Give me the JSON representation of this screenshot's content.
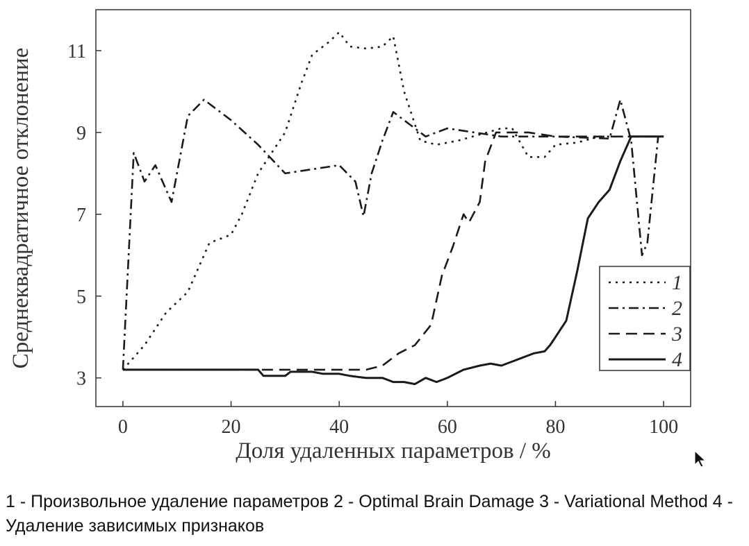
{
  "chart_data": {
    "type": "line",
    "xlabel": "Доля удаленных параметров / %",
    "ylabel": "Среднеквадратичное отклонение",
    "xlim": [
      -5,
      105
    ],
    "ylim": [
      2.3,
      12
    ],
    "x_ticks": [
      0,
      20,
      40,
      60,
      80,
      100
    ],
    "y_ticks": [
      3,
      5,
      7,
      9,
      11
    ],
    "legend_position": "bottom-right",
    "series": [
      {
        "name": "1",
        "style": "dotted",
        "points": [
          [
            0,
            3.2
          ],
          [
            4,
            3.8
          ],
          [
            8,
            4.6
          ],
          [
            12,
            5.1
          ],
          [
            16,
            6.3
          ],
          [
            20,
            6.5
          ],
          [
            22,
            7.0
          ],
          [
            25,
            8.0
          ],
          [
            30,
            9.0
          ],
          [
            33,
            10.2
          ],
          [
            35,
            10.9
          ],
          [
            38,
            11.2
          ],
          [
            40,
            11.45
          ],
          [
            42,
            11.1
          ],
          [
            45,
            11.05
          ],
          [
            48,
            11.1
          ],
          [
            50,
            11.35
          ],
          [
            52,
            10.0
          ],
          [
            55,
            8.8
          ],
          [
            58,
            8.7
          ],
          [
            62,
            8.8
          ],
          [
            66,
            8.95
          ],
          [
            70,
            9.1
          ],
          [
            72,
            9.1
          ],
          [
            75,
            8.4
          ],
          [
            78,
            8.4
          ],
          [
            80,
            8.7
          ],
          [
            84,
            8.75
          ],
          [
            88,
            8.9
          ],
          [
            92,
            8.9
          ],
          [
            100,
            8.9
          ]
        ]
      },
      {
        "name": "2",
        "style": "dashdot",
        "points": [
          [
            0,
            3.2
          ],
          [
            2,
            8.5
          ],
          [
            4,
            7.8
          ],
          [
            6,
            8.2
          ],
          [
            9,
            7.3
          ],
          [
            12,
            9.4
          ],
          [
            15,
            9.8
          ],
          [
            20,
            9.3
          ],
          [
            25,
            8.7
          ],
          [
            30,
            8.0
          ],
          [
            35,
            8.1
          ],
          [
            40,
            8.2
          ],
          [
            43,
            7.8
          ],
          [
            44.5,
            6.95
          ],
          [
            46,
            8.0
          ],
          [
            48,
            8.8
          ],
          [
            50,
            9.5
          ],
          [
            53,
            9.2
          ],
          [
            56,
            8.9
          ],
          [
            60,
            9.1
          ],
          [
            70,
            8.9
          ],
          [
            80,
            8.9
          ],
          [
            90,
            8.85
          ],
          [
            92,
            9.8
          ],
          [
            94,
            8.8
          ],
          [
            96,
            6.0
          ],
          [
            97,
            6.3
          ],
          [
            99,
            8.9
          ],
          [
            100,
            8.9
          ]
        ]
      },
      {
        "name": "3",
        "style": "dashed",
        "points": [
          [
            0,
            3.2
          ],
          [
            20,
            3.2
          ],
          [
            30,
            3.2
          ],
          [
            40,
            3.2
          ],
          [
            45,
            3.2
          ],
          [
            48,
            3.3
          ],
          [
            51,
            3.6
          ],
          [
            54,
            3.8
          ],
          [
            57,
            4.3
          ],
          [
            59,
            5.5
          ],
          [
            61,
            6.2
          ],
          [
            63,
            7.0
          ],
          [
            64,
            6.8
          ],
          [
            66,
            7.3
          ],
          [
            67,
            8.3
          ],
          [
            69,
            9.0
          ],
          [
            75,
            9.0
          ],
          [
            80,
            8.9
          ],
          [
            90,
            8.9
          ],
          [
            100,
            8.9
          ]
        ]
      },
      {
        "name": "4",
        "style": "solid",
        "points": [
          [
            0,
            3.2
          ],
          [
            10,
            3.2
          ],
          [
            20,
            3.2
          ],
          [
            25,
            3.2
          ],
          [
            26,
            3.05
          ],
          [
            30,
            3.05
          ],
          [
            31,
            3.15
          ],
          [
            35,
            3.15
          ],
          [
            37,
            3.1
          ],
          [
            40,
            3.1
          ],
          [
            42,
            3.05
          ],
          [
            45,
            3.0
          ],
          [
            48,
            3.0
          ],
          [
            50,
            2.9
          ],
          [
            52,
            2.9
          ],
          [
            54,
            2.85
          ],
          [
            56,
            3.0
          ],
          [
            58,
            2.9
          ],
          [
            60,
            3.0
          ],
          [
            63,
            3.2
          ],
          [
            66,
            3.3
          ],
          [
            68,
            3.35
          ],
          [
            70,
            3.3
          ],
          [
            72,
            3.4
          ],
          [
            74,
            3.5
          ],
          [
            76,
            3.6
          ],
          [
            78,
            3.65
          ],
          [
            79,
            3.8
          ],
          [
            80,
            4.0
          ],
          [
            82,
            4.4
          ],
          [
            84,
            5.6
          ],
          [
            86,
            6.9
          ],
          [
            88,
            7.3
          ],
          [
            90,
            7.6
          ],
          [
            92,
            8.3
          ],
          [
            94,
            8.9
          ],
          [
            100,
            8.9
          ]
        ]
      }
    ]
  },
  "caption": "1 - Произвольное удаление параметров 2 - Optimal Brain Damage 3 - Variational Method 4 - Удаление зависимых признаков",
  "colors": {
    "line": "#1a1a1a",
    "grid_bg": "#ffffff"
  }
}
